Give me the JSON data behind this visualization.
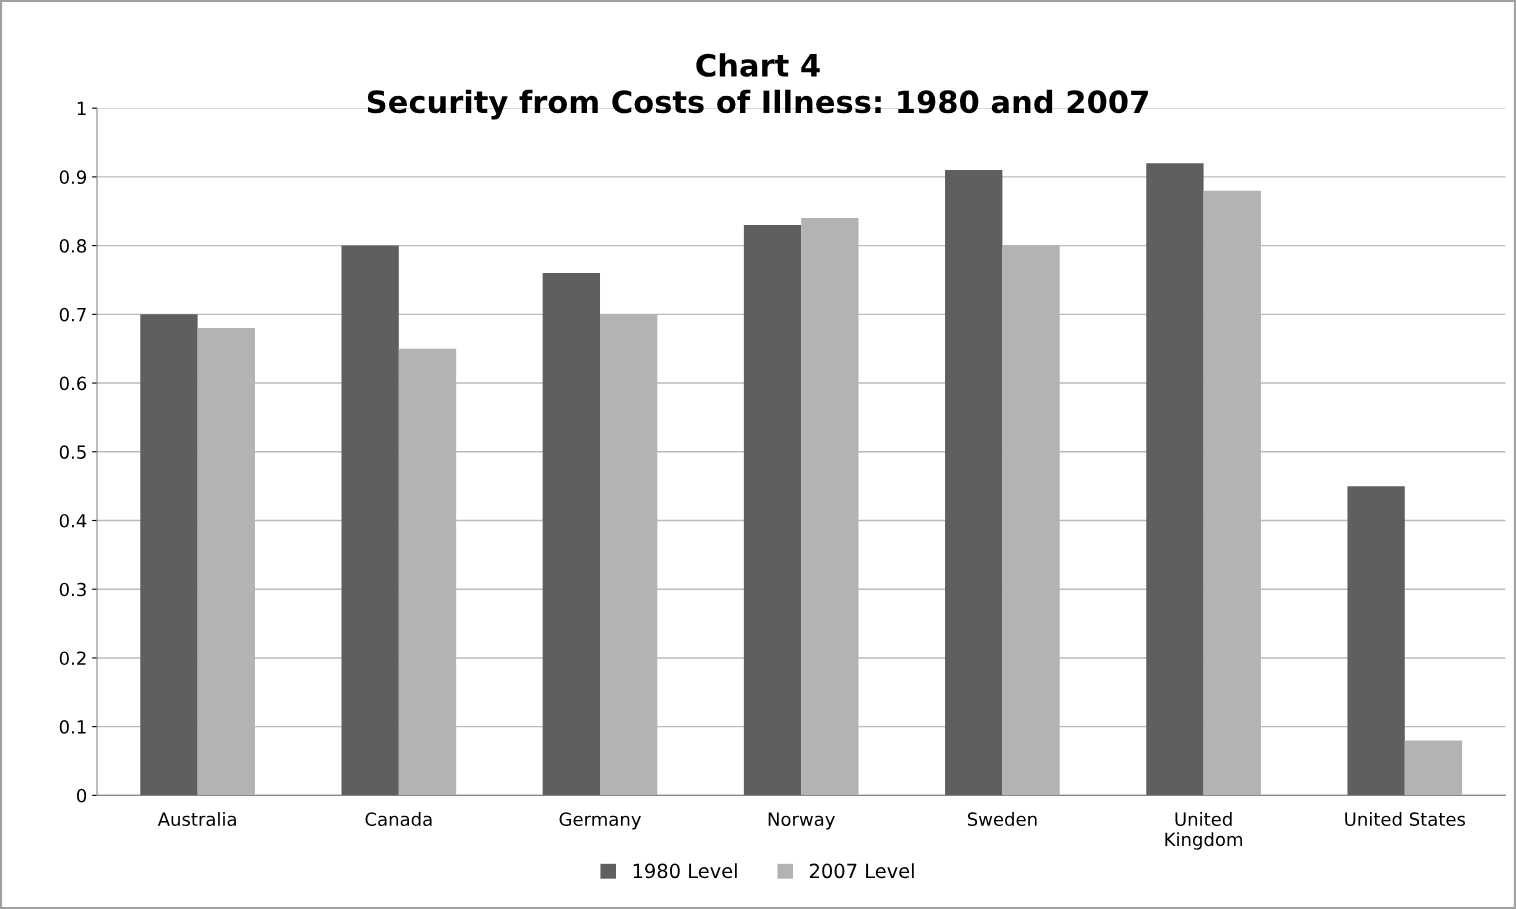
{
  "chart_data": {
    "type": "bar",
    "title": "Chart 4\nSecurity from Costs of Illness: 1980 and 2007",
    "categories": [
      "Australia",
      "Canada",
      "Germany",
      "Norway",
      "Sweden",
      "United\nKingdom",
      "United States"
    ],
    "series": [
      {
        "name": "1980 Level",
        "color": "#5f5f5f",
        "values": [
          0.7,
          0.8,
          0.76,
          0.83,
          0.91,
          0.92,
          0.45
        ]
      },
      {
        "name": "2007 Level",
        "color": "#b3b3b3",
        "values": [
          0.68,
          0.65,
          0.7,
          0.84,
          0.8,
          0.88,
          0.08
        ]
      }
    ],
    "ylim": [
      0,
      1
    ],
    "yticks": [
      0,
      0.1,
      0.2,
      0.3,
      0.4,
      0.5,
      0.6,
      0.7,
      0.8,
      0.9,
      1
    ],
    "grid": "y",
    "legend": "bottom"
  }
}
